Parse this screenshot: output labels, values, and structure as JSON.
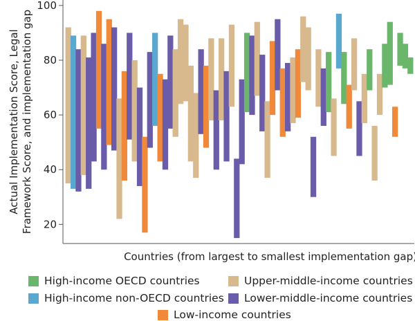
{
  "chart_data": {
    "type": "bar",
    "subtype": "floating-range",
    "title": "",
    "xlabel": "Countries (from largest to smallest implementation gap)",
    "ylabel": "Actual Implementation Score, Legal Framework Score, and implementation gap",
    "ylabel_lines": [
      "Actual Implementation Score, Legal",
      "Framework Score, and implementation gap"
    ],
    "ylim": [
      13,
      102
    ],
    "yticks": [
      20,
      40,
      60,
      80,
      100
    ],
    "grid": false,
    "legend_position": "bottom",
    "series": [
      {
        "name": "High-income OECD countries",
        "key": "oecd",
        "color": "#6ab66a"
      },
      {
        "name": "High-income non-OECD countries",
        "key": "nonoecd",
        "color": "#5aa7d0"
      },
      {
        "name": "Upper-middle-income countries",
        "key": "upper",
        "color": "#d8b98e"
      },
      {
        "name": "Lower-middle-income countries",
        "key": "lower",
        "color": "#6a5ca8"
      },
      {
        "name": "Low-income countries",
        "key": "low",
        "color": "#f08a3a"
      }
    ],
    "bars": [
      {
        "group": "upper",
        "low": 35,
        "high": 92
      },
      {
        "group": "nonoecd",
        "low": 33,
        "high": 89
      },
      {
        "group": "lower",
        "low": 32,
        "high": 84
      },
      {
        "group": "upper",
        "low": 38,
        "high": 89
      },
      {
        "group": "lower",
        "low": 33,
        "high": 81
      },
      {
        "group": "lower",
        "low": 43,
        "high": 90
      },
      {
        "group": "low",
        "low": 55,
        "high": 98
      },
      {
        "group": "lower",
        "low": 40,
        "high": 86
      },
      {
        "group": "low",
        "low": 49,
        "high": 95
      },
      {
        "group": "lower",
        "low": 47,
        "high": 92
      },
      {
        "group": "upper",
        "low": 22,
        "high": 66
      },
      {
        "group": "low",
        "low": 36,
        "high": 76
      },
      {
        "group": "lower",
        "low": 51,
        "high": 90
      },
      {
        "group": "upper",
        "low": 43,
        "high": 80
      },
      {
        "group": "lower",
        "low": 34,
        "high": 70
      },
      {
        "group": "low",
        "low": 17,
        "high": 52
      },
      {
        "group": "lower",
        "low": 48,
        "high": 83
      },
      {
        "group": "nonoecd",
        "low": 56,
        "high": 90
      },
      {
        "group": "low",
        "low": 43,
        "high": 75
      },
      {
        "group": "lower",
        "low": 40,
        "high": 73
      },
      {
        "group": "lower",
        "low": 55,
        "high": 89
      },
      {
        "group": "upper",
        "low": 52,
        "high": 84
      },
      {
        "group": "upper",
        "low": 64,
        "high": 95
      },
      {
        "group": "upper",
        "low": 65,
        "high": 93
      },
      {
        "group": "upper",
        "low": 43,
        "high": 78
      },
      {
        "group": "upper",
        "low": 37,
        "high": 68
      },
      {
        "group": "lower",
        "low": 53,
        "high": 84
      },
      {
        "group": "low",
        "low": 48,
        "high": 78
      },
      {
        "group": "upper",
        "low": 58,
        "high": 88
      },
      {
        "group": "lower",
        "low": 40,
        "high": 69
      },
      {
        "group": "upper",
        "low": 58,
        "high": 88
      },
      {
        "group": "lower",
        "low": 43,
        "high": 76
      },
      {
        "group": "upper",
        "low": 63,
        "high": 93
      },
      {
        "group": "lower",
        "low": 15,
        "high": 44
      },
      {
        "group": "lower",
        "low": 42,
        "high": 73
      },
      {
        "group": "oecd",
        "low": 61,
        "high": 90
      },
      {
        "group": "lower",
        "low": 60,
        "high": 89
      },
      {
        "group": "upper",
        "low": 67,
        "high": 94
      },
      {
        "group": "lower",
        "low": 54,
        "high": 82
      },
      {
        "group": "upper",
        "low": 37,
        "high": 65
      },
      {
        "group": "low",
        "low": 60,
        "high": 87
      },
      {
        "group": "lower",
        "low": 69,
        "high": 95
      },
      {
        "group": "low",
        "low": 52,
        "high": 77
      },
      {
        "group": "lower",
        "low": 54,
        "high": 79
      },
      {
        "group": "upper",
        "low": 57,
        "high": 81
      },
      {
        "group": "low",
        "low": 59,
        "high": 84
      },
      {
        "group": "upper",
        "low": 72,
        "high": 96
      },
      {
        "group": "upper",
        "low": 69,
        "high": 92
      },
      {
        "group": "lower",
        "low": 30,
        "high": 52
      },
      {
        "group": "upper",
        "low": 63,
        "high": 84
      },
      {
        "group": "lower",
        "low": 56,
        "high": 77
      },
      {
        "group": "oecd",
        "low": 61,
        "high": 83
      },
      {
        "group": "upper",
        "low": 45,
        "high": 66
      },
      {
        "group": "nonoecd",
        "low": 77,
        "high": 97
      },
      {
        "group": "oecd",
        "low": 64,
        "high": 83
      },
      {
        "group": "low",
        "low": 55,
        "high": 71
      },
      {
        "group": "upper",
        "low": 69,
        "high": 88
      },
      {
        "group": "lower",
        "low": 45,
        "high": 65
      },
      {
        "group": "upper",
        "low": 57,
        "high": 75
      },
      {
        "group": "oecd",
        "low": 69,
        "high": 84
      },
      {
        "group": "upper",
        "low": 36,
        "high": 56
      },
      {
        "group": "upper",
        "low": 60,
        "high": 75
      },
      {
        "group": "oecd",
        "low": 70,
        "high": 86
      },
      {
        "group": "oecd",
        "low": 71,
        "high": 94
      },
      {
        "group": "low",
        "low": 52,
        "high": 63
      },
      {
        "group": "oecd",
        "low": 78,
        "high": 90
      },
      {
        "group": "oecd",
        "low": 77,
        "high": 86
      },
      {
        "group": "oecd",
        "low": 75,
        "high": 81
      }
    ]
  }
}
